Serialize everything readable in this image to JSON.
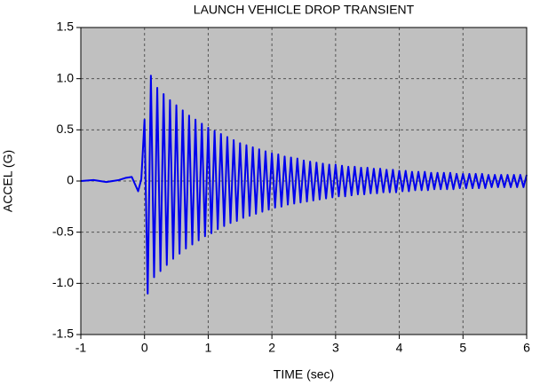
{
  "chart_data": {
    "type": "line",
    "title": "LAUNCH VEHICLE DROP TRANSIENT",
    "x_label": "TIME (sec)",
    "y_label": "ACCEL (G)",
    "color": "#0000ee",
    "grid": true,
    "xlim": [
      -1,
      6
    ],
    "xticks": [
      -1,
      0,
      1,
      2,
      3,
      4,
      5,
      6
    ],
    "ylim": [
      -1.5,
      1.5
    ],
    "yticks": [
      -1.5,
      {
        "value": -1,
        "label": "-1.0"
      },
      -0.5,
      0,
      0.5,
      {
        "value": 1,
        "label": "1.0"
      },
      1.5
    ],
    "x": [
      -1,
      -0.8,
      -0.6,
      -0.4,
      -0.3,
      -0.2,
      -0.1,
      -0.05,
      0,
      0.05,
      0.1,
      0.15,
      0.2,
      0.25,
      0.3,
      0.35,
      0.4,
      0.45,
      0.5,
      0.55,
      0.6,
      0.65,
      0.7,
      0.75,
      0.8,
      0.85,
      0.9,
      0.95,
      1,
      1.05,
      1.1,
      1.15,
      1.2,
      1.25,
      1.3,
      1.35,
      1.4,
      1.45,
      1.5,
      1.55,
      1.6,
      1.65,
      1.7,
      1.75,
      1.8,
      1.85,
      1.9,
      1.95,
      2,
      2.05,
      2.1,
      2.15,
      2.2,
      2.25,
      2.3,
      2.35,
      2.4,
      2.45,
      2.5,
      2.55,
      2.6,
      2.65,
      2.7,
      2.75,
      2.8,
      2.85,
      2.9,
      2.95,
      3,
      3.05,
      3.1,
      3.15,
      3.2,
      3.25,
      3.3,
      3.35,
      3.4,
      3.45,
      3.5,
      3.55,
      3.6,
      3.65,
      3.7,
      3.75,
      3.8,
      3.85,
      3.9,
      3.95,
      4,
      4.05,
      4.1,
      4.15,
      4.2,
      4.25,
      4.3,
      4.35,
      4.4,
      4.45,
      4.5,
      4.55,
      4.6,
      4.65,
      4.7,
      4.75,
      4.8,
      4.85,
      4.9,
      4.95,
      5,
      5.05,
      5.1,
      5.15,
      5.2,
      5.25,
      5.3,
      5.35,
      5.4,
      5.45,
      5.5,
      5.55,
      5.6,
      5.65,
      5.7,
      5.75,
      5.8,
      5.85,
      5.9,
      5.95,
      6
    ],
    "values": [
      0,
      0.01,
      -0.01,
      0.01,
      0.03,
      0.04,
      -0.1,
      0.02,
      0.6,
      -1.1,
      1.03,
      -0.94,
      0.91,
      -0.88,
      0.85,
      -0.82,
      0.79,
      -0.76,
      0.74,
      -0.71,
      0.69,
      -0.66,
      0.64,
      -0.62,
      0.6,
      -0.58,
      0.56,
      -0.54,
      0.52,
      -0.51,
      0.49,
      -0.47,
      0.46,
      -0.44,
      0.43,
      -0.41,
      0.4,
      -0.39,
      0.37,
      -0.36,
      0.35,
      -0.34,
      0.33,
      -0.32,
      0.31,
      -0.3,
      0.29,
      -0.28,
      0.27,
      -0.26,
      0.26,
      -0.25,
      0.24,
      -0.23,
      0.23,
      -0.22,
      0.22,
      -0.21,
      0.2,
      -0.2,
      0.19,
      -0.19,
      0.18,
      -0.18,
      0.17,
      -0.17,
      0.16,
      -0.16,
      0.16,
      -0.15,
      0.15,
      -0.15,
      0.14,
      -0.14,
      0.14,
      -0.13,
      0.13,
      -0.13,
      0.13,
      -0.12,
      0.12,
      -0.12,
      0.12,
      -0.11,
      0.11,
      -0.11,
      0.11,
      -0.11,
      0.1,
      -0.1,
      0.1,
      -0.1,
      0.09,
      -0.09,
      0.09,
      -0.09,
      0.09,
      -0.09,
      0.08,
      -0.08,
      0.08,
      -0.08,
      0.08,
      -0.08,
      0.08,
      -0.08,
      0.07,
      -0.07,
      0.07,
      -0.07,
      0.07,
      -0.07,
      0.07,
      -0.07,
      0.07,
      -0.07,
      0.06,
      -0.06,
      0.06,
      -0.06,
      0.06,
      -0.06,
      0.06,
      -0.06,
      0.06,
      -0.06,
      0.06,
      -0.06,
      0.06
    ]
  }
}
